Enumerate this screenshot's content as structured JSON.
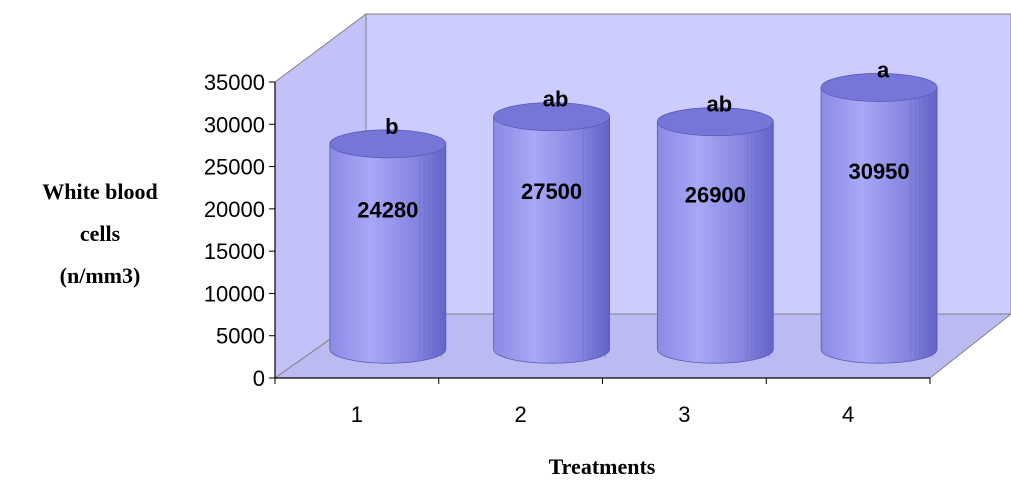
{
  "chart_data": {
    "type": "bar",
    "style": "3d-cylinder",
    "categories": [
      "1",
      "2",
      "3",
      "4"
    ],
    "values": [
      24280,
      27500,
      26900,
      30950
    ],
    "value_labels": [
      "24280",
      "27500",
      "26900",
      "30950"
    ],
    "significance_letters": [
      "b",
      "ab",
      "ab",
      "a"
    ],
    "xlabel": "Treatments",
    "ylabel_lines": [
      "White blood",
      "cells",
      "(n/mm3)"
    ],
    "ylim": [
      0,
      35000
    ],
    "yticks": [
      "0",
      "5000",
      "10000",
      "15000",
      "20000",
      "25000",
      "30000",
      "35000"
    ],
    "grid": false,
    "legend": "none",
    "colors": {
      "wall": "#CCCCFF",
      "floor": "#CCCCFF",
      "bar_top": "#7777DD",
      "bar_body": "#9999EE",
      "bar_dark": "#6666CC"
    }
  }
}
